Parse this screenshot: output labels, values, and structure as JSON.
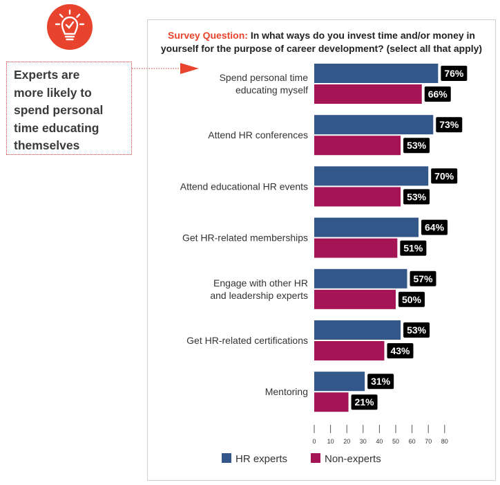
{
  "callout": {
    "lines": [
      "Experts are",
      "more likely to",
      "spend personal",
      "time educating",
      "themselves"
    ]
  },
  "colors": {
    "accent": "#e8432c",
    "hr_experts": "#34578a",
    "non_experts": "#a51556",
    "label_bg": "#000000"
  },
  "icons": {
    "header_icon": "lightbulb-check-icon",
    "pointer": "arrow-right-icon"
  },
  "chart_data": {
    "type": "bar",
    "orientation": "horizontal",
    "title_prefix": "Survey Question:",
    "title": "In what ways do you invest time and/or money in yourself for the purpose of career development? (select all that apply)",
    "categories": [
      [
        "Spend personal time",
        "educating myself"
      ],
      [
        "Attend HR conferences"
      ],
      [
        "Attend educational HR events"
      ],
      [
        "Get HR-related memberships"
      ],
      [
        "Engage with other HR",
        "and leadership experts"
      ],
      [
        "Get HR-related certifications"
      ],
      [
        "Mentoring"
      ]
    ],
    "series": [
      {
        "name": "HR experts",
        "values": [
          76,
          73,
          70,
          64,
          57,
          53,
          31
        ]
      },
      {
        "name": "Non-experts",
        "values": [
          66,
          53,
          53,
          51,
          50,
          43,
          21
        ]
      }
    ],
    "xlim": [
      0,
      80
    ],
    "xticks": [
      0,
      10,
      20,
      30,
      40,
      50,
      60,
      70,
      80
    ],
    "value_suffix": "%",
    "legend_position": "bottom"
  }
}
